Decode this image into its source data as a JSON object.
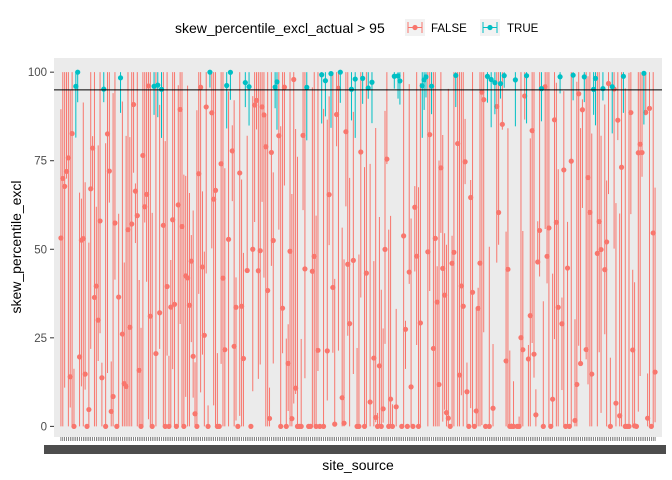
{
  "chart_data": {
    "type": "scatter",
    "title": "",
    "xlabel": "site_source",
    "ylabel": "skew_percentile_excl",
    "ylim": [
      -3,
      104
    ],
    "yticks": [
      0,
      25,
      50,
      75,
      100
    ],
    "grid": false,
    "legend": {
      "title": "skew_percentile_excl_actual > 95",
      "placement": "top",
      "entries": [
        {
          "label": "FALSE",
          "color": "#f8766d"
        },
        {
          "label": "TRUE",
          "color": "#00bfc4"
        }
      ]
    },
    "reference_line": {
      "y": 95,
      "color": "#000000"
    },
    "x_count": 320,
    "x_tick_labels": "overplotted site_source categories (illegible)",
    "series": [
      {
        "name": "FALSE",
        "color": "#f8766d",
        "description": "sites with actual skew percentile <= 95, points with vertical error ranges spanning 0-100"
      },
      {
        "name": "TRUE",
        "color": "#00bfc4",
        "description": "sites with actual skew percentile > 95, clustered near 95-100"
      }
    ],
    "sample_points": [
      {
        "x": 1,
        "y": 70,
        "series": "FALSE"
      },
      {
        "x": 5,
        "y": 14,
        "series": "FALSE"
      },
      {
        "x": 8,
        "y": 96,
        "series": "TRUE"
      },
      {
        "x": 9,
        "y": 100,
        "series": "TRUE"
      },
      {
        "x": 12,
        "y": 53,
        "series": "FALSE"
      },
      {
        "x": 20,
        "y": 30,
        "series": "FALSE"
      },
      {
        "x": 30,
        "y": 0,
        "series": "FALSE"
      },
      {
        "x": 45,
        "y": 62,
        "series": "FALSE"
      },
      {
        "x": 80,
        "y": 100,
        "series": "TRUE"
      },
      {
        "x": 100,
        "y": 44,
        "series": "FALSE"
      },
      {
        "x": 150,
        "y": 100,
        "series": "TRUE"
      },
      {
        "x": 200,
        "y": 22,
        "series": "FALSE"
      },
      {
        "x": 250,
        "y": 99,
        "series": "TRUE"
      },
      {
        "x": 300,
        "y": 3,
        "series": "FALSE"
      }
    ]
  }
}
